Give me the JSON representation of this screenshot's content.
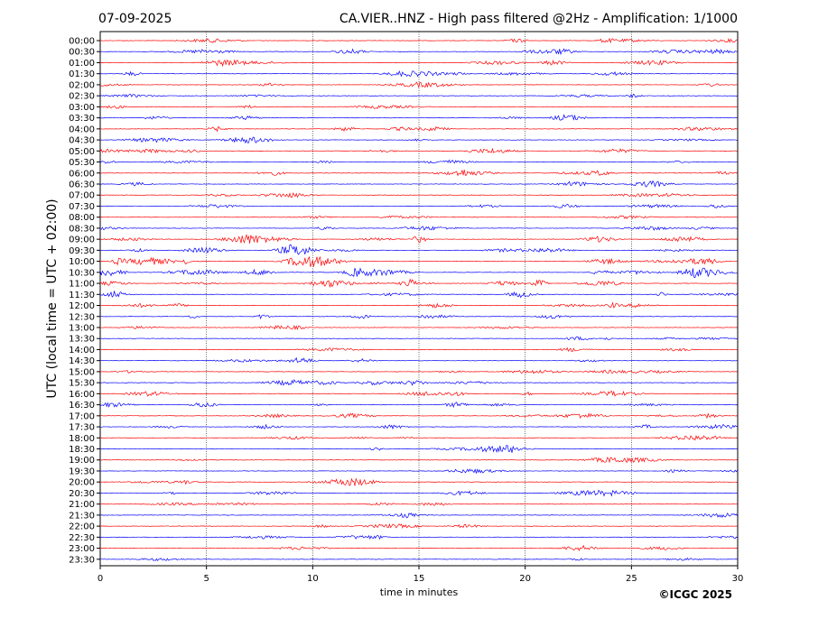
{
  "header": {
    "date": "07-09-2025",
    "title": "CA.VIER..HNZ - High pass filtered @2Hz - Amplification: 1/1000"
  },
  "footer": {
    "copyright": "©ICGC 2025"
  },
  "chart_data": {
    "type": "line",
    "title": "CA.VIER..HNZ - High pass filtered @2Hz - Amplification: 1/1000",
    "xlabel": "time in minutes",
    "ylabel": "UTC (local time = UTC + 02:00)",
    "xlim": [
      0,
      30
    ],
    "x_ticks": [
      0,
      5,
      10,
      15,
      20,
      25,
      30
    ],
    "grid": "vertical dotted at 5, 10, 15, 20, 25",
    "row_labels": [
      "00:00",
      "00:30",
      "01:00",
      "01:30",
      "02:00",
      "02:30",
      "03:00",
      "03:30",
      "04:00",
      "04:30",
      "05:00",
      "05:30",
      "06:00",
      "06:30",
      "07:00",
      "07:30",
      "08:00",
      "08:30",
      "09:00",
      "09:30",
      "10:00",
      "10:30",
      "11:00",
      "11:30",
      "12:00",
      "12:30",
      "13:00",
      "13:30",
      "14:00",
      "14:30",
      "15:00",
      "15:30",
      "16:00",
      "16:30",
      "17:00",
      "17:30",
      "18:00",
      "18:30",
      "19:00",
      "19:30",
      "20:00",
      "20:30",
      "21:00",
      "21:30",
      "22:00",
      "22:30",
      "23:00",
      "23:30"
    ],
    "trace_colors": [
      "#ff0000",
      "#0000ff"
    ],
    "activity_level": [
      0.4,
      0.5,
      0.6,
      0.5,
      0.4,
      0.3,
      0.3,
      0.4,
      0.5,
      0.4,
      0.6,
      0.4,
      0.6,
      0.5,
      0.4,
      0.4,
      0.3,
      0.4,
      0.8,
      0.9,
      1.0,
      1.0,
      0.9,
      0.6,
      0.5,
      0.5,
      0.3,
      0.3,
      0.3,
      0.4,
      0.4,
      0.6,
      0.5,
      0.6,
      0.5,
      0.4,
      0.4,
      0.4,
      0.3,
      0.3,
      0.4,
      0.4,
      0.4,
      0.3,
      0.3,
      0.3,
      0.3,
      0.2
    ]
  }
}
